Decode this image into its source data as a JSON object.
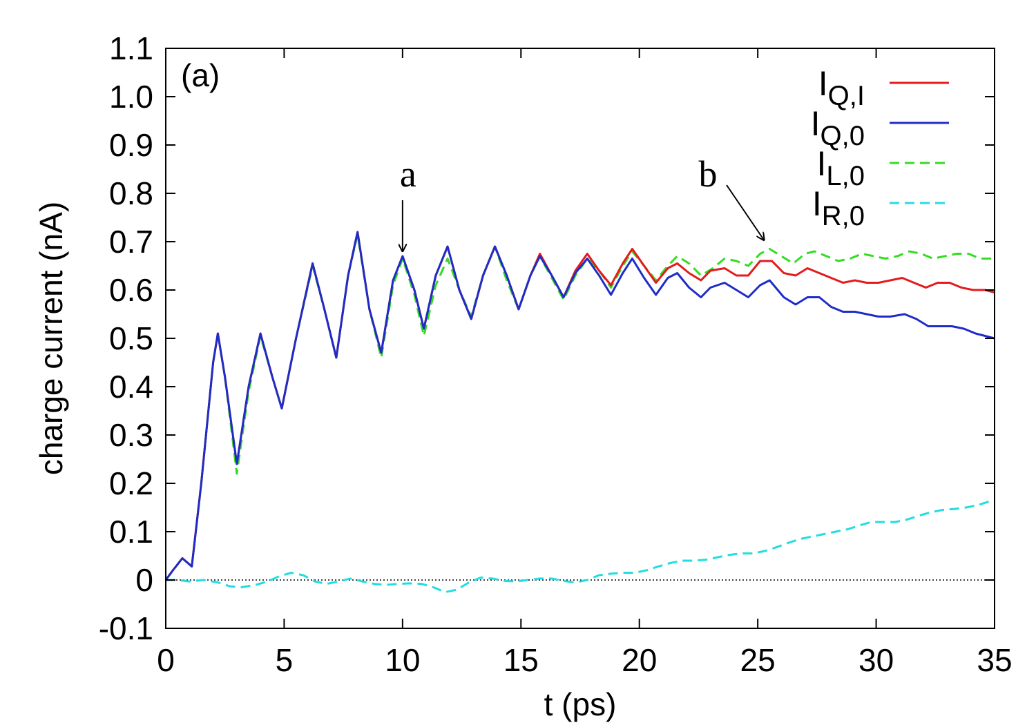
{
  "chart_data": {
    "type": "line",
    "panel_label": "(a)",
    "xlabel": "t (ps)",
    "ylabel": "charge current (nA)",
    "xlim": [
      0,
      35
    ],
    "ylim": [
      -0.1,
      1.1
    ],
    "xticks": [
      0,
      5,
      10,
      15,
      20,
      25,
      30,
      35
    ],
    "yticks": [
      -0.1,
      0,
      0.1,
      0.2,
      0.3,
      0.4,
      0.5,
      0.6,
      0.7,
      0.8,
      0.9,
      1.0,
      1.1
    ],
    "ytick_labels": [
      "-0.1",
      "0",
      "0.1",
      "0.2",
      "0.3",
      "0.4",
      "0.5",
      "0.6",
      "0.7",
      "0.8",
      "0.9",
      "1.0",
      "1.1"
    ],
    "grid": false,
    "zero_line": true,
    "legend_position": "top-right",
    "series": [
      {
        "name": "I_{Q,I}",
        "label_main": "I",
        "label_sub": "Q,I",
        "color": "#e41a1c",
        "dash": "solid",
        "points": [
          [
            0,
            0
          ],
          [
            0.3,
            0.02
          ],
          [
            0.7,
            0.045
          ],
          [
            1.1,
            0.028
          ],
          [
            1.5,
            0.2
          ],
          [
            2.0,
            0.45
          ],
          [
            2.2,
            0.51
          ],
          [
            2.5,
            0.42
          ],
          [
            3.0,
            0.24
          ],
          [
            3.5,
            0.4
          ],
          [
            4.0,
            0.51
          ],
          [
            4.5,
            0.42
          ],
          [
            4.9,
            0.355
          ],
          [
            5.5,
            0.5
          ],
          [
            6.2,
            0.655
          ],
          [
            6.7,
            0.56
          ],
          [
            7.2,
            0.46
          ],
          [
            7.7,
            0.63
          ],
          [
            8.1,
            0.72
          ],
          [
            8.6,
            0.56
          ],
          [
            9.1,
            0.47
          ],
          [
            9.6,
            0.62
          ],
          [
            10.0,
            0.67
          ],
          [
            10.5,
            0.6
          ],
          [
            10.9,
            0.52
          ],
          [
            11.4,
            0.63
          ],
          [
            11.9,
            0.69
          ],
          [
            12.4,
            0.6
          ],
          [
            12.9,
            0.54
          ],
          [
            13.4,
            0.63
          ],
          [
            13.9,
            0.69
          ],
          [
            14.4,
            0.63
          ],
          [
            14.9,
            0.56
          ],
          [
            15.4,
            0.63
          ],
          [
            15.8,
            0.675
          ],
          [
            16.3,
            0.63
          ],
          [
            16.8,
            0.585
          ],
          [
            17.3,
            0.64
          ],
          [
            17.8,
            0.675
          ],
          [
            18.3,
            0.64
          ],
          [
            18.8,
            0.61
          ],
          [
            19.3,
            0.655
          ],
          [
            19.7,
            0.685
          ],
          [
            20.2,
            0.65
          ],
          [
            20.7,
            0.615
          ],
          [
            21.2,
            0.645
          ],
          [
            21.6,
            0.655
          ],
          [
            22.1,
            0.635
          ],
          [
            22.6,
            0.62
          ],
          [
            23.0,
            0.64
          ],
          [
            23.6,
            0.645
          ],
          [
            24.1,
            0.63
          ],
          [
            24.6,
            0.63
          ],
          [
            25.1,
            0.66
          ],
          [
            25.6,
            0.66
          ],
          [
            26.1,
            0.635
          ],
          [
            26.6,
            0.63
          ],
          [
            27.1,
            0.645
          ],
          [
            27.6,
            0.635
          ],
          [
            28.1,
            0.625
          ],
          [
            28.6,
            0.615
          ],
          [
            29.1,
            0.62
          ],
          [
            29.6,
            0.615
          ],
          [
            30.1,
            0.615
          ],
          [
            30.6,
            0.62
          ],
          [
            31.1,
            0.625
          ],
          [
            31.6,
            0.615
          ],
          [
            32.1,
            0.605
          ],
          [
            32.6,
            0.615
          ],
          [
            33.1,
            0.615
          ],
          [
            33.6,
            0.605
          ],
          [
            34.1,
            0.6
          ],
          [
            34.6,
            0.6
          ],
          [
            35.0,
            0.595
          ]
        ]
      },
      {
        "name": "I_{Q,0}",
        "label_main": "I",
        "label_sub": "Q,0",
        "color": "#1f2cc8",
        "dash": "solid",
        "points": [
          [
            0,
            0
          ],
          [
            0.3,
            0.02
          ],
          [
            0.7,
            0.045
          ],
          [
            1.1,
            0.028
          ],
          [
            1.5,
            0.2
          ],
          [
            2.0,
            0.45
          ],
          [
            2.2,
            0.51
          ],
          [
            2.5,
            0.42
          ],
          [
            3.0,
            0.24
          ],
          [
            3.5,
            0.4
          ],
          [
            4.0,
            0.51
          ],
          [
            4.5,
            0.42
          ],
          [
            4.9,
            0.355
          ],
          [
            5.5,
            0.5
          ],
          [
            6.2,
            0.655
          ],
          [
            6.7,
            0.56
          ],
          [
            7.2,
            0.46
          ],
          [
            7.7,
            0.63
          ],
          [
            8.1,
            0.72
          ],
          [
            8.6,
            0.56
          ],
          [
            9.1,
            0.47
          ],
          [
            9.6,
            0.62
          ],
          [
            10.0,
            0.67
          ],
          [
            10.5,
            0.6
          ],
          [
            10.9,
            0.52
          ],
          [
            11.4,
            0.63
          ],
          [
            11.9,
            0.69
          ],
          [
            12.4,
            0.6
          ],
          [
            12.9,
            0.54
          ],
          [
            13.4,
            0.63
          ],
          [
            13.9,
            0.69
          ],
          [
            14.4,
            0.63
          ],
          [
            14.9,
            0.56
          ],
          [
            15.4,
            0.63
          ],
          [
            15.8,
            0.67
          ],
          [
            16.3,
            0.63
          ],
          [
            16.8,
            0.585
          ],
          [
            17.3,
            0.635
          ],
          [
            17.8,
            0.665
          ],
          [
            18.3,
            0.63
          ],
          [
            18.8,
            0.59
          ],
          [
            19.3,
            0.635
          ],
          [
            19.7,
            0.665
          ],
          [
            20.2,
            0.625
          ],
          [
            20.7,
            0.59
          ],
          [
            21.2,
            0.625
          ],
          [
            21.6,
            0.635
          ],
          [
            22.1,
            0.605
          ],
          [
            22.6,
            0.585
          ],
          [
            23.0,
            0.605
          ],
          [
            23.6,
            0.615
          ],
          [
            24.1,
            0.6
          ],
          [
            24.6,
            0.585
          ],
          [
            25.1,
            0.61
          ],
          [
            25.5,
            0.62
          ],
          [
            26.1,
            0.585
          ],
          [
            26.6,
            0.57
          ],
          [
            27.1,
            0.585
          ],
          [
            27.6,
            0.585
          ],
          [
            28.1,
            0.565
          ],
          [
            28.6,
            0.555
          ],
          [
            29.1,
            0.555
          ],
          [
            29.6,
            0.55
          ],
          [
            30.1,
            0.545
          ],
          [
            30.6,
            0.545
          ],
          [
            31.2,
            0.55
          ],
          [
            31.7,
            0.54
          ],
          [
            32.2,
            0.525
          ],
          [
            32.7,
            0.525
          ],
          [
            33.2,
            0.525
          ],
          [
            33.7,
            0.52
          ],
          [
            34.2,
            0.51
          ],
          [
            34.6,
            0.505
          ],
          [
            35.0,
            0.5
          ]
        ]
      },
      {
        "name": "I_{L,0}",
        "label_main": "I",
        "label_sub": "L,0",
        "color": "#33dd22",
        "dash": "dashed",
        "points": [
          [
            0,
            0
          ],
          [
            0.3,
            0.02
          ],
          [
            0.7,
            0.045
          ],
          [
            1.1,
            0.028
          ],
          [
            1.5,
            0.2
          ],
          [
            2.0,
            0.45
          ],
          [
            2.2,
            0.51
          ],
          [
            2.5,
            0.42
          ],
          [
            3.0,
            0.22
          ],
          [
            3.5,
            0.39
          ],
          [
            4.0,
            0.505
          ],
          [
            4.5,
            0.42
          ],
          [
            4.9,
            0.355
          ],
          [
            5.5,
            0.5
          ],
          [
            6.2,
            0.65
          ],
          [
            6.7,
            0.56
          ],
          [
            7.2,
            0.46
          ],
          [
            7.7,
            0.63
          ],
          [
            8.1,
            0.715
          ],
          [
            8.6,
            0.56
          ],
          [
            9.1,
            0.46
          ],
          [
            9.6,
            0.61
          ],
          [
            10.0,
            0.665
          ],
          [
            10.5,
            0.59
          ],
          [
            10.9,
            0.505
          ],
          [
            11.4,
            0.61
          ],
          [
            11.9,
            0.665
          ],
          [
            12.4,
            0.6
          ],
          [
            12.9,
            0.545
          ],
          [
            13.4,
            0.63
          ],
          [
            13.9,
            0.69
          ],
          [
            14.4,
            0.62
          ],
          [
            14.9,
            0.56
          ],
          [
            15.4,
            0.63
          ],
          [
            15.8,
            0.67
          ],
          [
            16.3,
            0.625
          ],
          [
            16.8,
            0.58
          ],
          [
            17.3,
            0.63
          ],
          [
            17.8,
            0.665
          ],
          [
            18.3,
            0.64
          ],
          [
            18.8,
            0.605
          ],
          [
            19.3,
            0.65
          ],
          [
            19.7,
            0.68
          ],
          [
            20.2,
            0.65
          ],
          [
            20.7,
            0.62
          ],
          [
            21.2,
            0.65
          ],
          [
            21.6,
            0.67
          ],
          [
            22.1,
            0.655
          ],
          [
            22.6,
            0.63
          ],
          [
            23.1,
            0.645
          ],
          [
            23.6,
            0.665
          ],
          [
            24.1,
            0.66
          ],
          [
            24.6,
            0.65
          ],
          [
            25.1,
            0.675
          ],
          [
            25.5,
            0.685
          ],
          [
            26.0,
            0.67
          ],
          [
            26.5,
            0.655
          ],
          [
            27.0,
            0.675
          ],
          [
            27.4,
            0.68
          ],
          [
            27.9,
            0.67
          ],
          [
            28.4,
            0.66
          ],
          [
            28.9,
            0.665
          ],
          [
            29.4,
            0.675
          ],
          [
            29.9,
            0.67
          ],
          [
            30.4,
            0.665
          ],
          [
            30.9,
            0.67
          ],
          [
            31.4,
            0.68
          ],
          [
            31.9,
            0.675
          ],
          [
            32.4,
            0.665
          ],
          [
            32.9,
            0.67
          ],
          [
            33.4,
            0.675
          ],
          [
            33.9,
            0.675
          ],
          [
            34.4,
            0.665
          ],
          [
            35.0,
            0.665
          ]
        ]
      },
      {
        "name": "I_{R,0}",
        "label_main": "I",
        "label_sub": "R,0",
        "color": "#22dde0",
        "dash": "dashed",
        "points": [
          [
            0,
            0
          ],
          [
            0.5,
            0.0
          ],
          [
            1.0,
            -0.003
          ],
          [
            1.6,
            0.0
          ],
          [
            2.2,
            -0.005
          ],
          [
            2.7,
            -0.013
          ],
          [
            3.2,
            -0.015
          ],
          [
            3.8,
            -0.01
          ],
          [
            4.3,
            -0.003
          ],
          [
            4.8,
            0.008
          ],
          [
            5.3,
            0.015
          ],
          [
            5.8,
            0.01
          ],
          [
            6.3,
            -0.003
          ],
          [
            6.8,
            -0.008
          ],
          [
            7.3,
            -0.003
          ],
          [
            7.8,
            0.003
          ],
          [
            8.3,
            -0.003
          ],
          [
            8.8,
            -0.008
          ],
          [
            9.3,
            -0.01
          ],
          [
            9.8,
            -0.008
          ],
          [
            10.3,
            -0.007
          ],
          [
            10.8,
            -0.008
          ],
          [
            11.3,
            -0.015
          ],
          [
            11.8,
            -0.025
          ],
          [
            12.3,
            -0.02
          ],
          [
            12.8,
            -0.005
          ],
          [
            13.3,
            0.005
          ],
          [
            13.8,
            0.003
          ],
          [
            14.3,
            -0.002
          ],
          [
            14.8,
            -0.003
          ],
          [
            15.3,
            0.0
          ],
          [
            15.8,
            0.003
          ],
          [
            16.3,
            0.003
          ],
          [
            16.8,
            -0.002
          ],
          [
            17.3,
            -0.005
          ],
          [
            17.8,
            0.0
          ],
          [
            18.3,
            0.01
          ],
          [
            18.8,
            0.013
          ],
          [
            19.3,
            0.015
          ],
          [
            19.8,
            0.015
          ],
          [
            20.3,
            0.02
          ],
          [
            20.8,
            0.028
          ],
          [
            21.3,
            0.035
          ],
          [
            21.8,
            0.04
          ],
          [
            22.3,
            0.04
          ],
          [
            22.8,
            0.042
          ],
          [
            23.3,
            0.047
          ],
          [
            23.8,
            0.052
          ],
          [
            24.3,
            0.055
          ],
          [
            24.8,
            0.055
          ],
          [
            25.3,
            0.06
          ],
          [
            25.8,
            0.068
          ],
          [
            26.3,
            0.077
          ],
          [
            26.8,
            0.085
          ],
          [
            27.3,
            0.09
          ],
          [
            27.8,
            0.095
          ],
          [
            28.3,
            0.1
          ],
          [
            28.8,
            0.105
          ],
          [
            29.3,
            0.113
          ],
          [
            29.8,
            0.12
          ],
          [
            30.3,
            0.12
          ],
          [
            30.8,
            0.12
          ],
          [
            31.3,
            0.125
          ],
          [
            31.8,
            0.133
          ],
          [
            32.3,
            0.14
          ],
          [
            32.8,
            0.145
          ],
          [
            33.3,
            0.147
          ],
          [
            33.8,
            0.15
          ],
          [
            34.3,
            0.155
          ],
          [
            34.8,
            0.163
          ],
          [
            35.0,
            0.165
          ]
        ]
      }
    ],
    "annotations": [
      {
        "label": "a",
        "target": [
          10.0,
          0.67
        ]
      },
      {
        "label": "b",
        "target": [
          25.6,
          0.69
        ]
      }
    ]
  }
}
